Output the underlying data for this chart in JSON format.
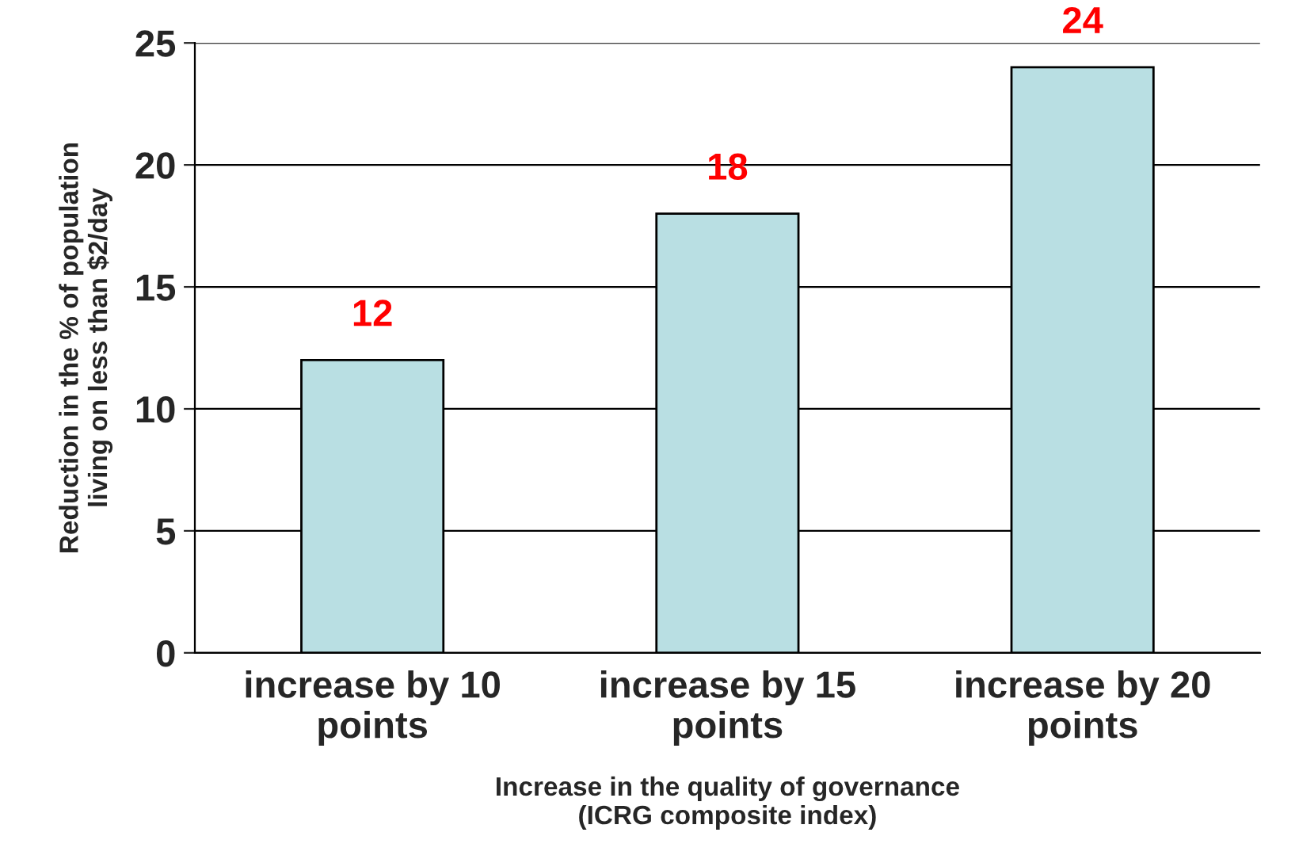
{
  "chart_data": {
    "type": "bar",
    "categories": [
      "increase by 10 points",
      "increase by 15 points",
      "increase by 20 points"
    ],
    "values": [
      12,
      18,
      24
    ],
    "color": "#b9dfe3",
    "data_labels": true,
    "ylim": [
      0,
      25
    ],
    "yticks": [
      0,
      5,
      10,
      15,
      20,
      25
    ],
    "grid": "y",
    "xlabel": "Increase in the quality of governance\n(ICRG composite index)",
    "ylabel": "Reduction in the % of population\nliving on less than $2/day"
  }
}
